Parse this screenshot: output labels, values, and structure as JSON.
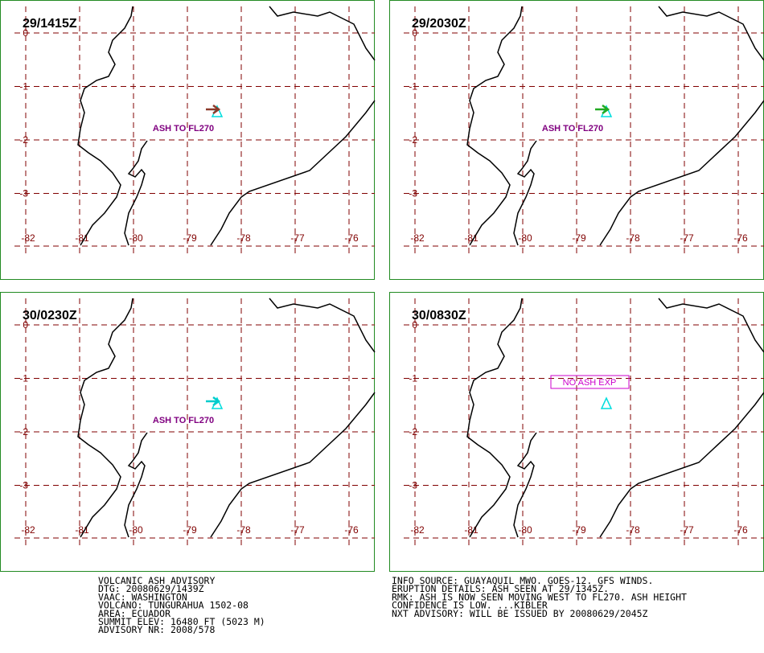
{
  "panels": [
    {
      "time": "29/1415Z",
      "annotation": "ASH TO FL270",
      "annotation_style": "plain",
      "plume_color": "#8b3a2a"
    },
    {
      "time": "29/2030Z",
      "annotation": "ASH TO FL270",
      "annotation_style": "plain",
      "plume_color": "#22aa22"
    },
    {
      "time": "30/0230Z",
      "annotation": "ASH TO FL270",
      "annotation_style": "plain",
      "plume_color": "#00cccc"
    },
    {
      "time": "30/0830Z",
      "annotation": "NO ASH EXP",
      "annotation_style": "box"
    }
  ],
  "lat_labels": [
    0,
    -1,
    -2,
    -3
  ],
  "lon_labels": [
    -82,
    -81,
    -80,
    -79,
    -78,
    -77,
    -76
  ],
  "advisory_left": [
    "VOLCANIC ASH ADVISORY",
    "DTG: 20080629/1439Z",
    "VAAC: WASHINGTON",
    "VOLCANO: TUNGURAHUA 1502-08",
    "AREA: ECUADOR",
    "SUMMIT ELEV: 16480 FT (5023 M)",
    "ADVISORY NR: 2008/578"
  ],
  "advisory_right": [
    "INFO SOURCE: GUAYAQUIL MWO. GOES-12. GFS WINDS.",
    "ERUPTION DETAILS: ASH SEEN AT 29/1345Z.",
    "RMK: ASH IS NOW SEEN MOVING WEST TO FL270. ASH HEIGHT",
    "CONFIDENCE IS LOW. ...KIBLER",
    "NXT ADVISORY: WILL BE ISSUED BY 20080629/2045Z"
  ]
}
